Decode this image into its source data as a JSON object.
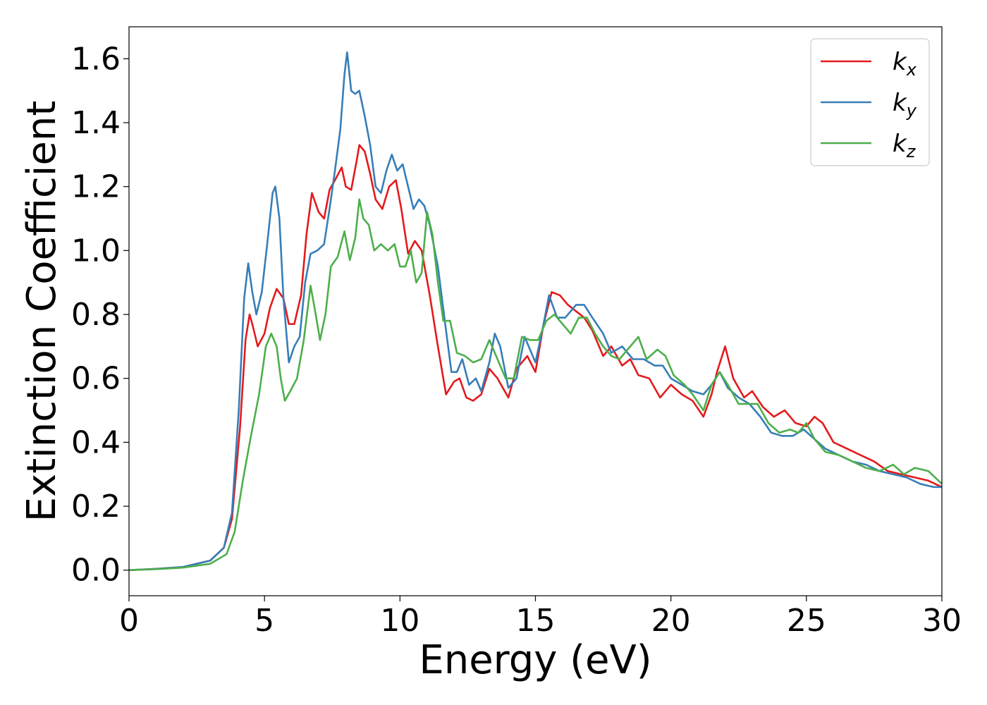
{
  "chart_data": {
    "type": "line",
    "xlabel": "Energy (eV)",
    "ylabel": "Extinction Coefficient",
    "xlim": [
      0,
      30
    ],
    "ylim": [
      -0.08,
      1.7
    ],
    "xticks": [
      0,
      5,
      10,
      15,
      20,
      25,
      30
    ],
    "yticks": [
      0.0,
      0.2,
      0.4,
      0.6,
      0.8,
      1.0,
      1.2,
      1.4,
      1.6
    ],
    "xtick_labels": [
      "0",
      "5",
      "10",
      "15",
      "20",
      "25",
      "30"
    ],
    "ytick_labels": [
      "0.0",
      "0.2",
      "0.4",
      "0.6",
      "0.8",
      "1.0",
      "1.2",
      "1.4",
      "1.6"
    ],
    "grid": false,
    "legend_position": "top-right",
    "series": [
      {
        "name": "k",
        "subscript": "x",
        "color": "#e41a1c",
        "points": [
          [
            0,
            0
          ],
          [
            1,
            0.004
          ],
          [
            2,
            0.01
          ],
          [
            3,
            0.03
          ],
          [
            3.5,
            0.07
          ],
          [
            3.8,
            0.16
          ],
          [
            4.1,
            0.45
          ],
          [
            4.3,
            0.72
          ],
          [
            4.45,
            0.8
          ],
          [
            4.55,
            0.77
          ],
          [
            4.75,
            0.7
          ],
          [
            5.0,
            0.74
          ],
          [
            5.2,
            0.82
          ],
          [
            5.45,
            0.88
          ],
          [
            5.7,
            0.85
          ],
          [
            5.9,
            0.77
          ],
          [
            6.1,
            0.77
          ],
          [
            6.35,
            0.86
          ],
          [
            6.55,
            1.05
          ],
          [
            6.75,
            1.18
          ],
          [
            7.0,
            1.12
          ],
          [
            7.2,
            1.1
          ],
          [
            7.4,
            1.19
          ],
          [
            7.6,
            1.22
          ],
          [
            7.85,
            1.26
          ],
          [
            8.0,
            1.2
          ],
          [
            8.2,
            1.19
          ],
          [
            8.4,
            1.28
          ],
          [
            8.5,
            1.33
          ],
          [
            8.7,
            1.31
          ],
          [
            8.9,
            1.24
          ],
          [
            9.1,
            1.16
          ],
          [
            9.35,
            1.13
          ],
          [
            9.6,
            1.2
          ],
          [
            9.85,
            1.22
          ],
          [
            10.05,
            1.13
          ],
          [
            10.3,
            0.99
          ],
          [
            10.55,
            1.03
          ],
          [
            10.8,
            1.0
          ],
          [
            11.1,
            0.86
          ],
          [
            11.4,
            0.7
          ],
          [
            11.7,
            0.55
          ],
          [
            12.0,
            0.59
          ],
          [
            12.2,
            0.6
          ],
          [
            12.45,
            0.54
          ],
          [
            12.7,
            0.53
          ],
          [
            13.0,
            0.55
          ],
          [
            13.3,
            0.63
          ],
          [
            13.6,
            0.6
          ],
          [
            14.0,
            0.54
          ],
          [
            14.3,
            0.63
          ],
          [
            14.7,
            0.67
          ],
          [
            15.0,
            0.62
          ],
          [
            15.3,
            0.77
          ],
          [
            15.6,
            0.87
          ],
          [
            15.9,
            0.86
          ],
          [
            16.2,
            0.83
          ],
          [
            16.5,
            0.81
          ],
          [
            16.8,
            0.79
          ],
          [
            17.1,
            0.75
          ],
          [
            17.5,
            0.67
          ],
          [
            17.8,
            0.7
          ],
          [
            18.2,
            0.64
          ],
          [
            18.5,
            0.66
          ],
          [
            18.8,
            0.61
          ],
          [
            19.2,
            0.6
          ],
          [
            19.6,
            0.54
          ],
          [
            20.0,
            0.58
          ],
          [
            20.4,
            0.55
          ],
          [
            20.8,
            0.53
          ],
          [
            21.2,
            0.48
          ],
          [
            21.5,
            0.55
          ],
          [
            21.7,
            0.62
          ],
          [
            22.0,
            0.7
          ],
          [
            22.3,
            0.6
          ],
          [
            22.7,
            0.54
          ],
          [
            23.0,
            0.56
          ],
          [
            23.4,
            0.51
          ],
          [
            23.8,
            0.48
          ],
          [
            24.2,
            0.5
          ],
          [
            24.6,
            0.46
          ],
          [
            25.0,
            0.45
          ],
          [
            25.3,
            0.48
          ],
          [
            25.6,
            0.46
          ],
          [
            26.0,
            0.4
          ],
          [
            26.5,
            0.38
          ],
          [
            27.0,
            0.36
          ],
          [
            27.5,
            0.34
          ],
          [
            28.0,
            0.31
          ],
          [
            28.5,
            0.3
          ],
          [
            29.0,
            0.29
          ],
          [
            29.5,
            0.28
          ],
          [
            30,
            0.26
          ]
        ]
      },
      {
        "name": "k",
        "subscript": "y",
        "color": "#377eb8",
        "points": [
          [
            0,
            0
          ],
          [
            1,
            0.004
          ],
          [
            2,
            0.01
          ],
          [
            3,
            0.03
          ],
          [
            3.5,
            0.07
          ],
          [
            3.8,
            0.18
          ],
          [
            4.05,
            0.5
          ],
          [
            4.25,
            0.85
          ],
          [
            4.4,
            0.96
          ],
          [
            4.55,
            0.87
          ],
          [
            4.7,
            0.8
          ],
          [
            4.9,
            0.87
          ],
          [
            5.1,
            1.02
          ],
          [
            5.3,
            1.18
          ],
          [
            5.4,
            1.2
          ],
          [
            5.55,
            1.1
          ],
          [
            5.7,
            0.85
          ],
          [
            5.9,
            0.65
          ],
          [
            6.1,
            0.7
          ],
          [
            6.3,
            0.73
          ],
          [
            6.5,
            0.9
          ],
          [
            6.7,
            0.99
          ],
          [
            6.95,
            1.0
          ],
          [
            7.2,
            1.02
          ],
          [
            7.4,
            1.13
          ],
          [
            7.6,
            1.25
          ],
          [
            7.8,
            1.38
          ],
          [
            7.95,
            1.55
          ],
          [
            8.05,
            1.62
          ],
          [
            8.2,
            1.5
          ],
          [
            8.35,
            1.49
          ],
          [
            8.5,
            1.5
          ],
          [
            8.7,
            1.42
          ],
          [
            8.9,
            1.33
          ],
          [
            9.1,
            1.2
          ],
          [
            9.3,
            1.18
          ],
          [
            9.5,
            1.25
          ],
          [
            9.7,
            1.3
          ],
          [
            9.9,
            1.25
          ],
          [
            10.1,
            1.27
          ],
          [
            10.3,
            1.2
          ],
          [
            10.5,
            1.13
          ],
          [
            10.7,
            1.16
          ],
          [
            10.9,
            1.14
          ],
          [
            11.1,
            1.08
          ],
          [
            11.4,
            0.95
          ],
          [
            11.7,
            0.75
          ],
          [
            11.9,
            0.62
          ],
          [
            12.1,
            0.62
          ],
          [
            12.3,
            0.66
          ],
          [
            12.55,
            0.58
          ],
          [
            12.8,
            0.6
          ],
          [
            13.0,
            0.56
          ],
          [
            13.3,
            0.65
          ],
          [
            13.5,
            0.74
          ],
          [
            13.7,
            0.7
          ],
          [
            14.0,
            0.57
          ],
          [
            14.3,
            0.6
          ],
          [
            14.6,
            0.73
          ],
          [
            15.0,
            0.65
          ],
          [
            15.3,
            0.77
          ],
          [
            15.5,
            0.86
          ],
          [
            15.8,
            0.79
          ],
          [
            16.1,
            0.79
          ],
          [
            16.5,
            0.83
          ],
          [
            16.8,
            0.83
          ],
          [
            17.1,
            0.79
          ],
          [
            17.5,
            0.74
          ],
          [
            17.8,
            0.68
          ],
          [
            18.2,
            0.7
          ],
          [
            18.6,
            0.66
          ],
          [
            19.0,
            0.66
          ],
          [
            19.4,
            0.64
          ],
          [
            19.7,
            0.64
          ],
          [
            20.0,
            0.6
          ],
          [
            20.4,
            0.58
          ],
          [
            20.8,
            0.56
          ],
          [
            21.2,
            0.55
          ],
          [
            21.5,
            0.58
          ],
          [
            21.8,
            0.62
          ],
          [
            22.1,
            0.57
          ],
          [
            22.5,
            0.54
          ],
          [
            22.9,
            0.52
          ],
          [
            23.3,
            0.48
          ],
          [
            23.7,
            0.43
          ],
          [
            24.1,
            0.42
          ],
          [
            24.5,
            0.42
          ],
          [
            24.9,
            0.44
          ],
          [
            25.3,
            0.41
          ],
          [
            25.7,
            0.38
          ],
          [
            26.2,
            0.36
          ],
          [
            26.7,
            0.34
          ],
          [
            27.2,
            0.33
          ],
          [
            27.7,
            0.31
          ],
          [
            28.2,
            0.3
          ],
          [
            28.7,
            0.29
          ],
          [
            29.2,
            0.27
          ],
          [
            29.7,
            0.26
          ],
          [
            30,
            0.26
          ]
        ]
      },
      {
        "name": "k",
        "subscript": "z",
        "color": "#4daf4a",
        "points": [
          [
            0,
            0
          ],
          [
            1,
            0.003
          ],
          [
            2,
            0.008
          ],
          [
            3,
            0.02
          ],
          [
            3.6,
            0.05
          ],
          [
            3.9,
            0.12
          ],
          [
            4.2,
            0.28
          ],
          [
            4.5,
            0.42
          ],
          [
            4.8,
            0.55
          ],
          [
            5.05,
            0.7
          ],
          [
            5.25,
            0.74
          ],
          [
            5.45,
            0.7
          ],
          [
            5.6,
            0.6
          ],
          [
            5.75,
            0.53
          ],
          [
            5.95,
            0.56
          ],
          [
            6.2,
            0.6
          ],
          [
            6.45,
            0.72
          ],
          [
            6.7,
            0.89
          ],
          [
            6.85,
            0.82
          ],
          [
            7.05,
            0.72
          ],
          [
            7.25,
            0.8
          ],
          [
            7.45,
            0.95
          ],
          [
            7.7,
            0.98
          ],
          [
            7.95,
            1.06
          ],
          [
            8.15,
            0.97
          ],
          [
            8.35,
            1.04
          ],
          [
            8.5,
            1.16
          ],
          [
            8.65,
            1.1
          ],
          [
            8.85,
            1.08
          ],
          [
            9.05,
            1.0
          ],
          [
            9.3,
            1.02
          ],
          [
            9.55,
            1.0
          ],
          [
            9.8,
            1.02
          ],
          [
            10.0,
            0.95
          ],
          [
            10.2,
            0.95
          ],
          [
            10.4,
            1.0
          ],
          [
            10.6,
            0.9
          ],
          [
            10.8,
            0.93
          ],
          [
            11.0,
            1.12
          ],
          [
            11.2,
            1.05
          ],
          [
            11.4,
            0.9
          ],
          [
            11.6,
            0.78
          ],
          [
            11.85,
            0.78
          ],
          [
            12.1,
            0.68
          ],
          [
            12.4,
            0.67
          ],
          [
            12.7,
            0.65
          ],
          [
            13.0,
            0.66
          ],
          [
            13.3,
            0.72
          ],
          [
            13.6,
            0.66
          ],
          [
            13.9,
            0.6
          ],
          [
            14.2,
            0.6
          ],
          [
            14.5,
            0.73
          ],
          [
            14.8,
            0.72
          ],
          [
            15.1,
            0.72
          ],
          [
            15.4,
            0.78
          ],
          [
            15.7,
            0.8
          ],
          [
            16.0,
            0.77
          ],
          [
            16.3,
            0.74
          ],
          [
            16.6,
            0.79
          ],
          [
            16.9,
            0.79
          ],
          [
            17.2,
            0.74
          ],
          [
            17.5,
            0.7
          ],
          [
            17.8,
            0.67
          ],
          [
            18.1,
            0.66
          ],
          [
            18.4,
            0.69
          ],
          [
            18.8,
            0.73
          ],
          [
            19.1,
            0.66
          ],
          [
            19.5,
            0.69
          ],
          [
            19.8,
            0.67
          ],
          [
            20.1,
            0.61
          ],
          [
            20.5,
            0.58
          ],
          [
            20.8,
            0.55
          ],
          [
            21.2,
            0.5
          ],
          [
            21.5,
            0.58
          ],
          [
            21.8,
            0.62
          ],
          [
            22.1,
            0.58
          ],
          [
            22.5,
            0.52
          ],
          [
            22.8,
            0.52
          ],
          [
            23.2,
            0.52
          ],
          [
            23.6,
            0.46
          ],
          [
            24.0,
            0.43
          ],
          [
            24.4,
            0.44
          ],
          [
            24.7,
            0.43
          ],
          [
            25.0,
            0.46
          ],
          [
            25.3,
            0.41
          ],
          [
            25.7,
            0.37
          ],
          [
            26.2,
            0.36
          ],
          [
            26.7,
            0.34
          ],
          [
            27.2,
            0.32
          ],
          [
            27.7,
            0.31
          ],
          [
            28.2,
            0.33
          ],
          [
            28.6,
            0.3
          ],
          [
            29.0,
            0.32
          ],
          [
            29.5,
            0.31
          ],
          [
            30,
            0.27
          ]
        ]
      }
    ]
  }
}
